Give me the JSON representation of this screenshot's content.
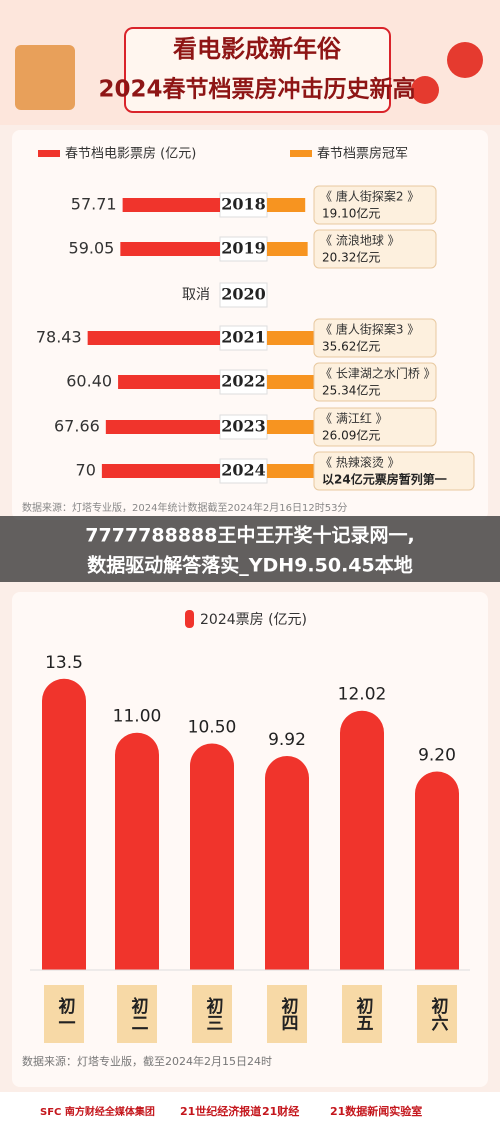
{
  "header": {
    "line1": "看电影成新年俗",
    "line2": "2024春节档票房冲击历史新高"
  },
  "chart_data": [
    {
      "type": "diverging-bar",
      "categories": [
        "2018",
        "2019",
        "2020",
        "2021",
        "2022",
        "2023",
        "2024"
      ],
      "xlim": [
        0,
        80
      ],
      "x2lim": [
        0,
        40
      ],
      "series": [
        {
          "name": "春节档电影票房 (亿元)",
          "color": "#f0342c",
          "values": [
            57.71,
            59.05,
            null,
            78.43,
            60.4,
            67.66,
            70
          ],
          "value_labels": [
            "57.71",
            "59.05",
            "取消",
            "78.43",
            "60.40",
            "67.66",
            "70"
          ]
        },
        {
          "name": "春节档票房冠军",
          "color": "#f79420",
          "axis": "x2",
          "values": [
            19.1,
            20.32,
            null,
            35.62,
            25.34,
            26.09,
            24
          ],
          "films": [
            "《 唐人街探案2 》",
            "《 流浪地球 》",
            null,
            "《 唐人街探案3 》",
            "《 长津湖之水门桥 》",
            "《 满江红 》",
            "《 热辣滚烫 》"
          ],
          "value_labels": [
            "19.10亿元",
            "20.32亿元",
            null,
            "35.62亿元",
            "25.34亿元",
            "26.09亿元",
            "以24亿元票房暂列第一"
          ]
        }
      ],
      "source": "数据来源：灯塔专业版，2024年统计数据截至2024年2月16日12时53分"
    },
    {
      "type": "bar",
      "categories": [
        "初一",
        "初二",
        "初三",
        "初四",
        "初五",
        "初六"
      ],
      "series": [
        {
          "name": "2024票房 (亿元)",
          "color": "#f0342c",
          "values": [
            13.5,
            11,
            10.5,
            9.92,
            12.02,
            9.2
          ],
          "value_labels": [
            "13.5",
            "11.00",
            "10.50",
            "9.92",
            "12.02",
            "9.20"
          ]
        }
      ],
      "ylim": [
        0,
        14
      ],
      "source": "数据来源：灯塔专业版，截至2024年2月15日24时"
    }
  ],
  "overlay": {
    "line1": "7777788888王中王开奖十记录网一,",
    "line2": "数据驱动解答落实_YDH9.50.45本地"
  },
  "footer": {
    "logos": [
      "SFC 南方财经全媒体集团",
      "21世纪经济报道",
      "21财经",
      "21数据新闻实验室"
    ]
  }
}
